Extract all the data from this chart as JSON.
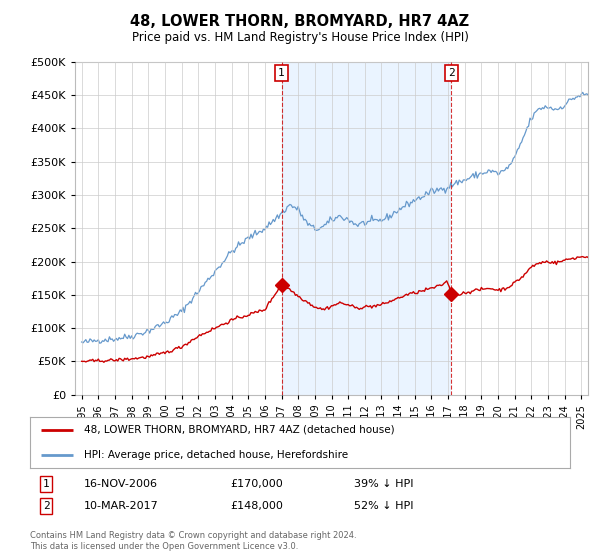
{
  "title": "48, LOWER THORN, BROMYARD, HR7 4AZ",
  "subtitle": "Price paid vs. HM Land Registry's House Price Index (HPI)",
  "sale1_date": "16-NOV-2006",
  "sale1_price": 170000,
  "sale1_label": "39% ↓ HPI",
  "sale2_date": "10-MAR-2017",
  "sale2_price": 148000,
  "sale2_label": "52% ↓ HPI",
  "legend_red": "48, LOWER THORN, BROMYARD, HR7 4AZ (detached house)",
  "legend_blue": "HPI: Average price, detached house, Herefordshire",
  "footer": "Contains HM Land Registry data © Crown copyright and database right 2024.\nThis data is licensed under the Open Government Licence v3.0.",
  "red_color": "#cc0000",
  "blue_color": "#6699cc",
  "shade_color": "#ddeeff",
  "background_color": "#ffffff",
  "grid_color": "#cccccc",
  "ylim": [
    0,
    500000
  ],
  "yticks": [
    0,
    50000,
    100000,
    150000,
    200000,
    250000,
    300000,
    350000,
    400000,
    450000,
    500000
  ],
  "sale1_x": 2007.0,
  "sale2_x": 2017.2
}
